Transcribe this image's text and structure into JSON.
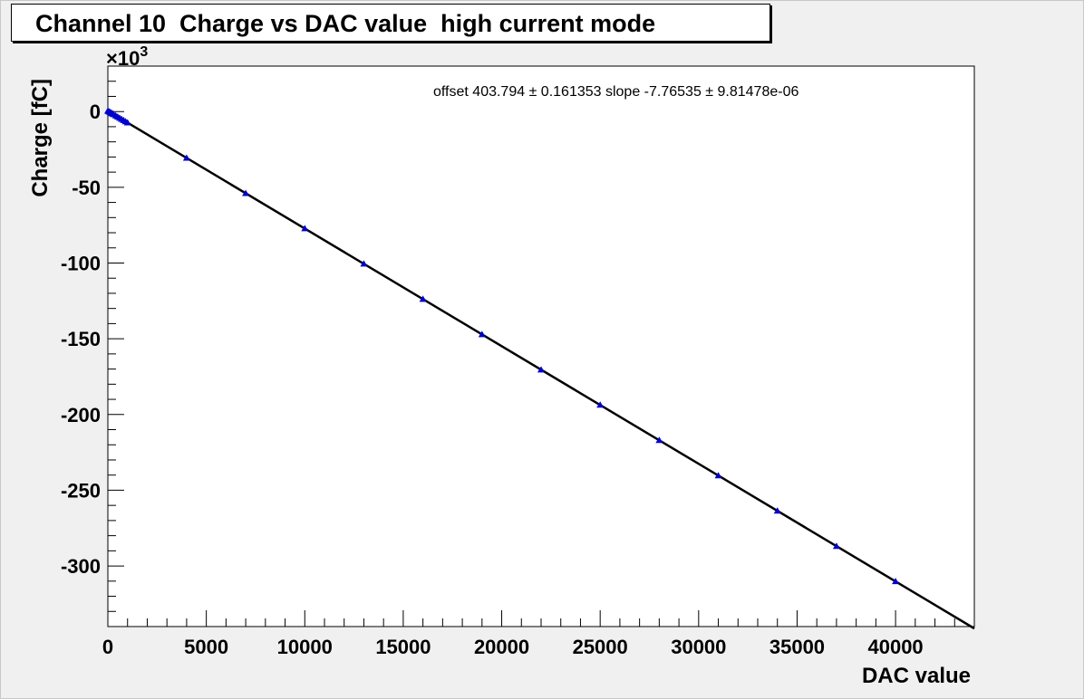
{
  "chart_data": {
    "type": "scatter",
    "title": "Channel 10  Charge vs DAC value  high current mode",
    "xlabel": "DAC value",
    "ylabel": "Charge [fC]",
    "y_multiplier": "×10",
    "y_multiplier_exp": "3",
    "xlim": [
      0,
      44000
    ],
    "ylim": [
      -340,
      30
    ],
    "x_ticks": [
      0,
      5000,
      10000,
      15000,
      20000,
      25000,
      30000,
      35000,
      40000
    ],
    "x_tick_labels": [
      "0",
      "5000",
      "10000",
      "15000",
      "20000",
      "25000",
      "30000",
      "35000",
      "40000"
    ],
    "y_ticks": [
      0,
      -50,
      -100,
      -150,
      -200,
      -250,
      -300
    ],
    "y_tick_labels": [
      "0",
      "-50",
      "-100",
      "-150",
      "-200",
      "-250",
      "-300"
    ],
    "fit_text": "offset 403.794 ± 0.161353   slope -7.76535 ± 9.81478e-06",
    "fit": {
      "offset": 403.794,
      "slope": -7.76535
    },
    "marker_color": "#0000cc",
    "line_color": "#000000",
    "grid": false,
    "series": [
      {
        "x": [
          0,
          50,
          100,
          150,
          200,
          250,
          300,
          400,
          500,
          600,
          700,
          800,
          900,
          1000,
          4000,
          7000,
          10000,
          13000,
          16000,
          19000,
          22000,
          25000,
          28000,
          31000,
          34000,
          37000,
          40000
        ],
        "y": [
          0.4,
          0.01,
          -0.37,
          -0.76,
          -1.15,
          -1.54,
          -1.93,
          -2.7,
          -3.48,
          -4.26,
          -5.03,
          -5.81,
          -6.58,
          -7.36,
          -30.66,
          -53.95,
          -77.25,
          -100.55,
          -123.84,
          -147.14,
          -170.43,
          -193.73,
          -217.03,
          -240.32,
          -263.62,
          -286.92,
          -310.21
        ]
      }
    ]
  }
}
